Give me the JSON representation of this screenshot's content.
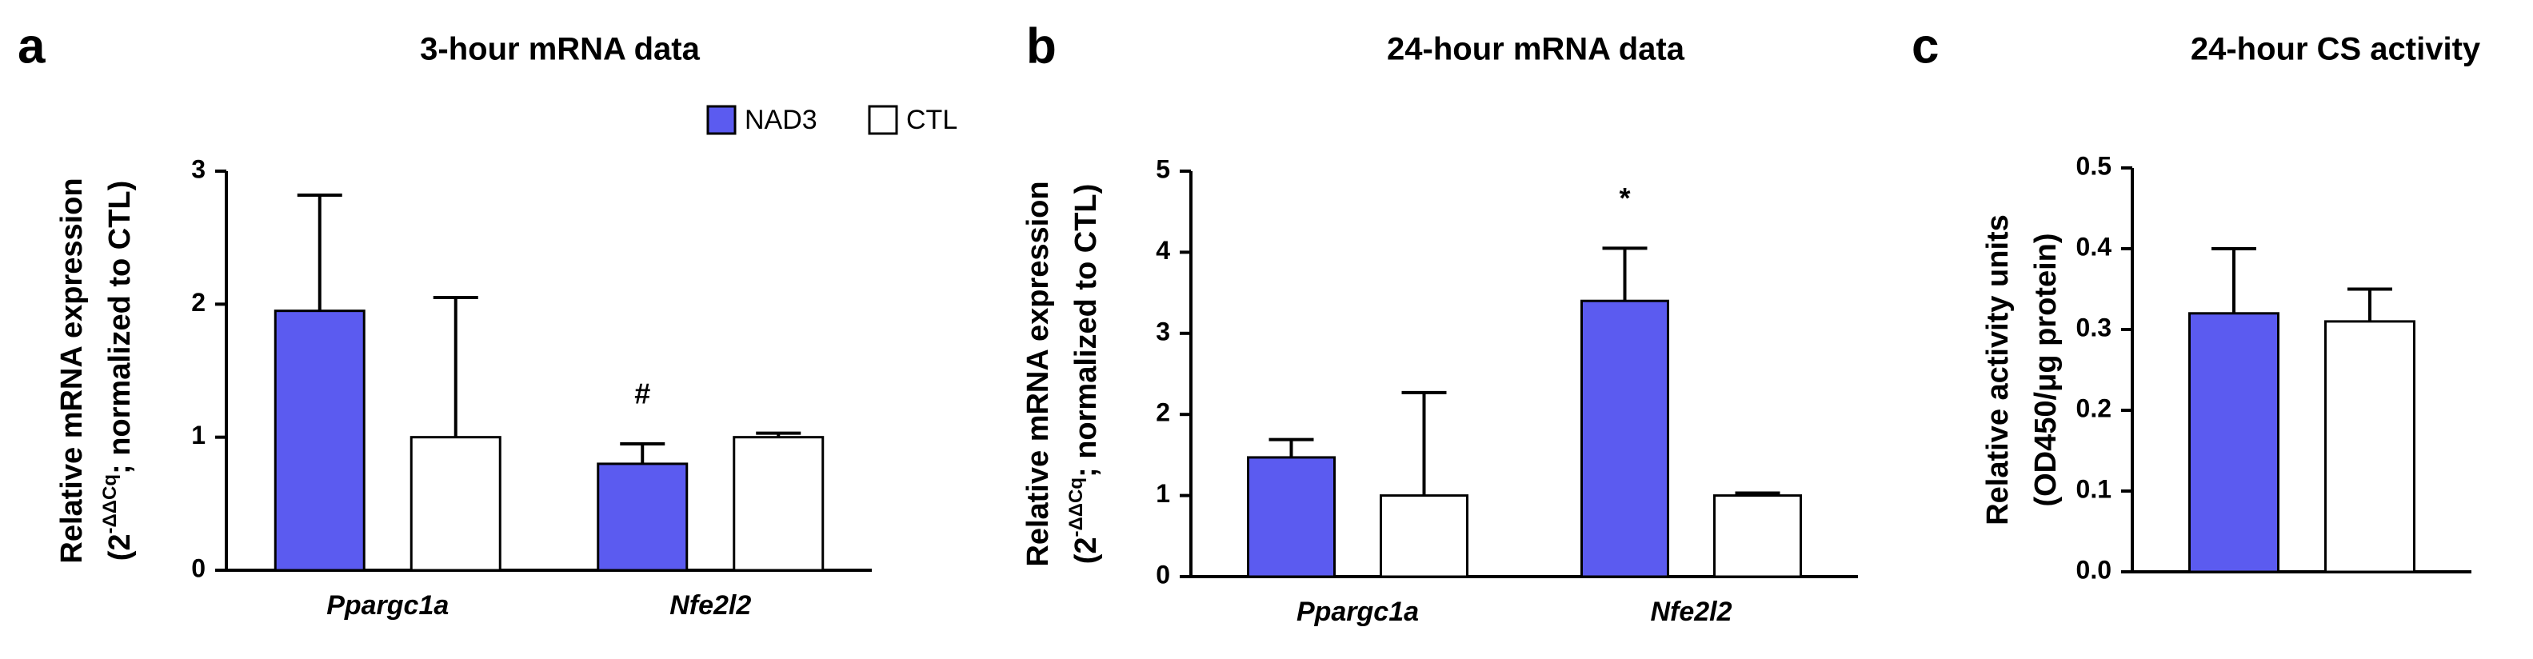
{
  "chart_data": [
    {
      "type": "bar",
      "panel": "a",
      "title": "3-hour mRNA data",
      "y_label": [
        "Relative mRNA expression",
        [
          "(2",
          "-ΔΔCq",
          "; normalized to CTL)"
        ]
      ],
      "categories": [
        "Ppargc1a",
        "Nfe2l2"
      ],
      "series": [
        {
          "name": "NAD3",
          "color": "#5b5bf0",
          "values": [
            1.95,
            0.8
          ],
          "errors": [
            0.87,
            0.15
          ]
        },
        {
          "name": "CTL",
          "color": "#ffffff",
          "values": [
            1.0,
            1.0
          ],
          "errors": [
            1.05,
            0.03
          ]
        }
      ],
      "annotations": [
        {
          "text": "#",
          "series": 0,
          "category": 1
        }
      ],
      "ylim": [
        0,
        3
      ],
      "yticks": [
        0,
        1,
        2,
        3
      ],
      "legend": "top-right"
    },
    {
      "type": "bar",
      "panel": "b",
      "title": "24-hour mRNA data",
      "y_label": [
        "Relative mRNA expression",
        [
          "(2",
          "-ΔΔCq",
          "; normalized to CTL)"
        ]
      ],
      "categories": [
        "Ppargc1a",
        "Nfe2l2"
      ],
      "series": [
        {
          "color": "#5b5bf0",
          "values": [
            1.47,
            3.4
          ],
          "errors": [
            0.22,
            0.65
          ]
        },
        {
          "color": "#ffffff",
          "values": [
            1.0,
            1.0
          ],
          "errors": [
            1.27,
            0.03
          ]
        }
      ],
      "annotations": [
        {
          "text": "*",
          "series": 0,
          "category": 1
        }
      ],
      "ylim": [
        0,
        5
      ],
      "yticks": [
        0,
        1,
        2,
        3,
        4,
        5
      ]
    },
    {
      "type": "bar",
      "panel": "c",
      "title": "24-hour CS activity",
      "y_label": [
        "Relative activity units",
        "(OD450/μg protein)"
      ],
      "categories": [
        null
      ],
      "series": [
        {
          "color": "#5b5bf0",
          "values": [
            0.32
          ],
          "errors": [
            0.08
          ]
        },
        {
          "color": "#ffffff",
          "values": [
            0.31
          ],
          "errors": [
            0.04
          ]
        }
      ],
      "ylim": [
        0,
        0.5
      ],
      "yticks": [
        {
          "value": 0,
          "label": "0.0"
        },
        0.1,
        0.2,
        0.3,
        0.4,
        0.5
      ]
    }
  ]
}
